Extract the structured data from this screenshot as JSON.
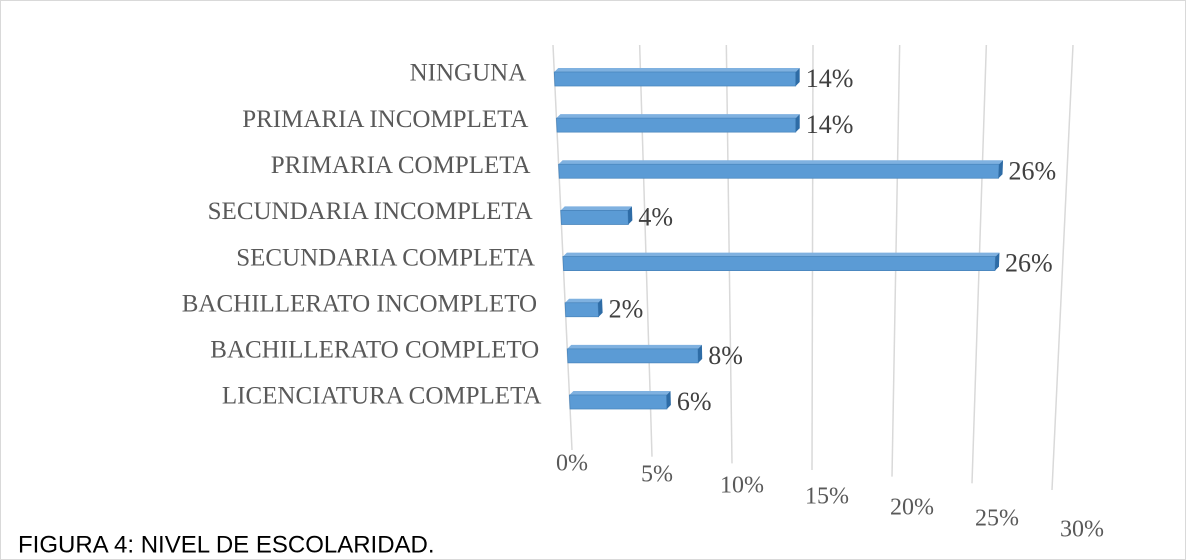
{
  "chart_data": {
    "type": "bar",
    "orientation": "horizontal",
    "caption": "FIGURA 4: NIVEL DE ESCOLARIDAD.",
    "categories": [
      "NINGUNA",
      "PRIMARIA INCOMPLETA",
      "PRIMARIA COMPLETA",
      "SECUNDARIA INCOMPLETA",
      "SECUNDARIA COMPLETA",
      "BACHILLERATO INCOMPLETO",
      "BACHILLERATO COMPLETO",
      "LICENCIATURA COMPLETA"
    ],
    "values": [
      14,
      14,
      26,
      4,
      26,
      2,
      8,
      6
    ],
    "value_labels": [
      "14%",
      "14%",
      "26%",
      "4%",
      "26%",
      "2%",
      "8%",
      "6%"
    ],
    "color": "#5b9bd5",
    "xlim": [
      0,
      30
    ],
    "xticks": [
      {
        "value": 0,
        "label": "0%"
      },
      {
        "value": 5,
        "label": "5%"
      },
      {
        "value": 10,
        "label": "10%"
      },
      {
        "value": 15,
        "label": "15%"
      },
      {
        "value": 20,
        "label": "20%"
      },
      {
        "value": 25,
        "label": "25%"
      },
      {
        "value": 30,
        "label": "30%"
      }
    ],
    "grid": true
  }
}
